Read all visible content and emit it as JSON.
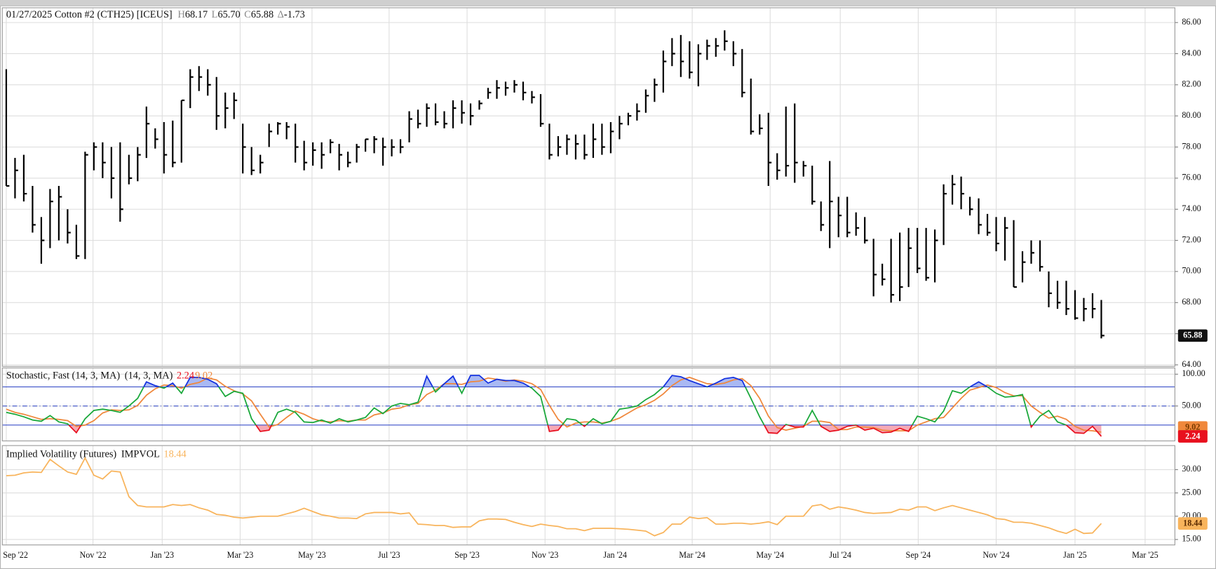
{
  "chart_data": [
    {
      "type": "ohlc",
      "title": "01/27/2025 Cotton #2 (CTH25) [ICEUS]",
      "stats": [
        {
          "prefix": "H",
          "value": 68.17
        },
        {
          "prefix": "L",
          "value": 65.7,
          "label": "65.70"
        },
        {
          "prefix": "C",
          "value": 65.88
        },
        {
          "prefix": "Δ",
          "value": -1.73
        }
      ],
      "color": "#000000",
      "tag_color": "#111111",
      "xlim": [
        -0.45,
        133.4
      ],
      "ylim": [
        63.9,
        86.95
      ],
      "yticks": [
        {
          "value": 64,
          "label": "64.00"
        },
        {
          "value": 66,
          "label": "66.00"
        },
        {
          "value": 68,
          "label": "68.00"
        },
        {
          "value": 70,
          "label": "70.00"
        },
        {
          "value": 72,
          "label": "72.00"
        },
        {
          "value": 74,
          "label": "74.00"
        },
        {
          "value": 76,
          "label": "76.00"
        },
        {
          "value": 78,
          "label": "78.00"
        },
        {
          "value": 80,
          "label": "80.00"
        },
        {
          "value": 82,
          "label": "82.00"
        },
        {
          "value": 84,
          "label": "84.00"
        },
        {
          "value": 86,
          "label": "86.00"
        }
      ],
      "grid": true,
      "high": [
        83,
        77.3,
        77.5,
        75.5,
        73.5,
        75.3,
        75.5,
        74,
        73,
        77.7,
        78.3,
        78.3,
        78,
        78.3,
        77.5,
        78,
        80.6,
        79.2,
        79.6,
        79.7,
        81,
        83,
        83.2,
        83,
        82.5,
        81.5,
        81.5,
        79.5,
        78,
        77.5,
        79.5,
        79.6,
        79.6,
        79.5,
        78.4,
        78.3,
        78.3,
        78.5,
        78.2,
        77.7,
        78.2,
        78.5,
        78.7,
        78.6,
        78.5,
        78.5,
        80.3,
        80.4,
        80.8,
        80.8,
        80.3,
        81,
        81,
        80.8,
        81,
        81.8,
        82.3,
        82.2,
        82.3,
        82.2,
        81.6,
        81.4,
        79.5,
        78.7,
        78.8,
        78.8,
        78.8,
        79.5,
        79.5,
        79.6,
        80,
        80.2,
        80.8,
        81.7,
        82.4,
        84.2,
        85,
        85.2,
        84.8,
        84.6,
        84.9,
        85,
        85.5,
        84.8,
        84.3,
        82.4,
        80.1,
        80.2,
        77.6,
        80.6,
        80.8,
        77.1,
        76.8,
        74.5,
        77.1,
        74.8,
        74.8,
        73.8,
        73.5,
        72.1,
        70.5,
        72.1,
        72.5,
        72.8,
        72.8,
        72.8,
        72.7,
        75.6,
        76.2,
        76.1,
        74.8,
        74.7,
        73.7,
        73.5,
        73.5,
        73.3,
        71.3,
        72,
        72,
        70,
        69.4,
        69.4,
        68.8,
        68.3,
        68.6,
        68.17
      ],
      "low": [
        75.5,
        74.7,
        74.5,
        72.5,
        70.5,
        71.5,
        72,
        71.8,
        70.8,
        70.8,
        76.5,
        76,
        74.7,
        73.2,
        75.6,
        75.8,
        77.3,
        77.9,
        76.3,
        76.7,
        77,
        80.5,
        81.6,
        81.3,
        79.1,
        79.2,
        79.8,
        76.3,
        76.2,
        76.3,
        78,
        78.8,
        78.5,
        77,
        76.5,
        76.8,
        76.6,
        77.6,
        76.5,
        76.7,
        77,
        77.7,
        77.6,
        76.8,
        77.4,
        77.6,
        78.3,
        79.2,
        79.3,
        79.4,
        79.2,
        79.2,
        79.5,
        79.4,
        80.4,
        81.1,
        81.1,
        81.3,
        81.5,
        81,
        80.8,
        79.3,
        77.2,
        77.4,
        77.5,
        77.2,
        77.2,
        77.3,
        77.5,
        77.6,
        78.5,
        79.4,
        79.7,
        80.2,
        80.9,
        81.5,
        83.2,
        82.5,
        82.4,
        81.9,
        83.6,
        83.8,
        84.2,
        83.2,
        81.2,
        78.8,
        78.8,
        75.5,
        75.9,
        76.1,
        75.7,
        76.1,
        74.3,
        72.6,
        71.5,
        72.2,
        72.2,
        72.3,
        71.8,
        68.4,
        69.1,
        68,
        68.1,
        69,
        69.9,
        69.4,
        69.3,
        71.7,
        74.3,
        74,
        73.6,
        72.4,
        72.3,
        71.3,
        70.7,
        69,
        69.3,
        70.5,
        70,
        67.7,
        67.6,
        67.2,
        66.9,
        66.8,
        67,
        65.7
      ],
      "close": [
        75.5,
        76.5,
        75,
        73,
        72,
        74.5,
        74.8,
        72.5,
        71,
        77.5,
        78,
        77,
        76,
        74,
        76,
        77.5,
        79.5,
        78.5,
        77.5,
        77,
        81,
        82.5,
        82.5,
        82,
        80,
        80.5,
        81,
        78,
        76.5,
        77,
        79,
        79.5,
        79.3,
        78,
        77,
        77.8,
        77.5,
        78.3,
        77.5,
        77,
        78,
        78.5,
        78.5,
        78,
        78,
        78,
        79.8,
        79.5,
        80.5,
        79.6,
        79.5,
        80.5,
        80.2,
        80,
        80.8,
        81.5,
        81.8,
        81.8,
        82,
        81.5,
        81.2,
        79.5,
        77.5,
        78,
        78.5,
        78.2,
        77.5,
        78.5,
        78,
        79,
        79.5,
        80,
        80.3,
        81.3,
        82,
        83.5,
        84,
        83.5,
        82.8,
        84,
        84.5,
        84.5,
        84.8,
        84,
        81.5,
        79,
        79.2,
        77,
        76.5,
        76.8,
        77,
        76.8,
        74.5,
        73,
        74.5,
        73.6,
        72.5,
        72.8,
        72,
        69.8,
        69.5,
        68.5,
        69,
        71.5,
        70.2,
        69.6,
        72,
        75,
        75.6,
        75,
        74,
        73,
        72.5,
        71.8,
        72.8,
        69,
        70.6,
        71.2,
        70.3,
        68.6,
        68,
        67.6,
        67,
        67.6,
        67.6,
        65.88
      ]
    },
    {
      "type": "stochastic",
      "title": "Stochastic, Fast (14, 3, MA)",
      "subtitle": "(14, 3, MA)",
      "xlim": [
        -0.45,
        133.4
      ],
      "ylim": [
        -4.9,
        109.8
      ],
      "yticks": [
        {
          "value": 50,
          "label": "50.00"
        },
        {
          "value": 100,
          "label": "100.00"
        }
      ],
      "upper": 80,
      "lower": 20,
      "mid": 50,
      "band_color": "#3a4fc8",
      "above_color": "#1230e0",
      "below_color": "#e8101e",
      "above_fill": "#a9b9f3",
      "below_fill": "#f5a9b6",
      "series": [
        {
          "color": "#19a83a",
          "values": [
            40,
            37,
            33,
            28,
            26,
            35,
            25,
            22,
            8,
            30,
            43,
            45,
            43,
            40,
            50,
            62,
            88,
            82,
            78,
            86,
            70,
            95,
            95,
            92,
            85,
            65,
            73,
            70,
            30,
            10,
            12,
            40,
            45,
            40,
            25,
            24,
            28,
            23,
            30,
            25,
            28,
            32,
            47,
            38,
            50,
            54,
            52,
            56,
            97,
            72,
            85,
            97,
            70,
            98,
            98,
            86,
            92,
            90,
            90,
            86,
            78,
            65,
            10,
            12,
            30,
            28,
            18,
            30,
            22,
            26,
            45,
            47,
            50,
            60,
            68,
            80,
            98,
            96,
            90,
            85,
            80,
            86,
            93,
            95,
            90,
            62,
            33,
            8,
            7,
            21,
            17,
            17,
            43,
            18,
            10,
            12,
            18,
            20,
            12,
            15,
            8,
            9,
            15,
            10,
            34,
            30,
            25,
            42,
            74,
            70,
            80,
            88,
            80,
            70,
            64,
            65,
            68,
            17,
            34,
            43,
            25,
            20,
            8,
            7,
            18,
            2.24
          ]
        },
        {
          "color": "#f0883c",
          "values": [
            45,
            40,
            37,
            33,
            29,
            30,
            29,
            27,
            18,
            20,
            27,
            39,
            44,
            43,
            44,
            51,
            67,
            77,
            83,
            82,
            78,
            84,
            87,
            94,
            91,
            81,
            74,
            69,
            58,
            37,
            17,
            21,
            32,
            42,
            37,
            30,
            26,
            25,
            27,
            26,
            28,
            28,
            36,
            39,
            45,
            47,
            52,
            54,
            68,
            75,
            85,
            85,
            84,
            88,
            89,
            94,
            92,
            89,
            91,
            89,
            85,
            76,
            51,
            29,
            17,
            23,
            25,
            25,
            23,
            26,
            31,
            39,
            47,
            52,
            59,
            69,
            82,
            91,
            95,
            90,
            85,
            84,
            86,
            91,
            93,
            82,
            62,
            34,
            16,
            12,
            15,
            18,
            26,
            26,
            24,
            13,
            13,
            17,
            17,
            16,
            12,
            11,
            11,
            11,
            20,
            25,
            30,
            32,
            47,
            62,
            75,
            79,
            83,
            79,
            71,
            66,
            66,
            50,
            40,
            31,
            34,
            29,
            18,
            12,
            11,
            9.02
          ]
        }
      ]
    },
    {
      "type": "line",
      "title": "Implied Volatility (Futures)",
      "subtitle": "IMPVOL",
      "xlim": [
        -0.45,
        133.4
      ],
      "ylim": [
        13.83,
        35.17
      ],
      "yticks": [
        {
          "value": 15,
          "label": "15.00"
        },
        {
          "value": 20,
          "label": "20.00"
        },
        {
          "value": 25,
          "label": "25.00"
        },
        {
          "value": 30,
          "label": "30.00"
        }
      ],
      "xticks": [
        {
          "value": 0,
          "label": "Sep '22"
        },
        {
          "value": 9.9,
          "label": "Nov '22"
        },
        {
          "value": 17.8,
          "label": "Jan '23"
        },
        {
          "value": 26.7,
          "label": "Mar '23"
        },
        {
          "value": 34.9,
          "label": "May '23"
        },
        {
          "value": 43.7,
          "label": "Jul '23"
        },
        {
          "value": 52.6,
          "label": "Sep '23"
        },
        {
          "value": 61.5,
          "label": "Nov '23"
        },
        {
          "value": 69.5,
          "label": "Jan '24"
        },
        {
          "value": 78.3,
          "label": "Mar '24"
        },
        {
          "value": 87.2,
          "label": "May '24"
        },
        {
          "value": 95.2,
          "label": "Jul '24"
        },
        {
          "value": 104.1,
          "label": "Sep '24"
        },
        {
          "value": 113,
          "label": "Nov '24"
        },
        {
          "value": 122,
          "label": "Jan '25"
        },
        {
          "value": 130,
          "label": "Mar '25"
        }
      ],
      "series": [
        {
          "color": "#f8b45c",
          "values": [
            28.7,
            28.8,
            29.3,
            29.5,
            29.4,
            32.2,
            30.8,
            29.5,
            29,
            32.5,
            28.8,
            28,
            29.7,
            29.5,
            24.2,
            22.3,
            22,
            22,
            22,
            22.5,
            22.3,
            22.5,
            21.8,
            21.3,
            20.4,
            20.2,
            19.8,
            19.6,
            19.8,
            20,
            20,
            20,
            20.5,
            21,
            21.7,
            21,
            20.3,
            20,
            19.6,
            19.6,
            19.5,
            20.5,
            20.8,
            20.8,
            20.8,
            20.5,
            20.7,
            18.3,
            18.2,
            18,
            18,
            17.6,
            17.7,
            17.7,
            19,
            19.4,
            19.4,
            19.3,
            18.7,
            18.2,
            17.8,
            18.3,
            18,
            17.8,
            17.3,
            17.3,
            16.9,
            17.4,
            17.4,
            17.4,
            17.3,
            17.2,
            17,
            16.8,
            15.8,
            16.5,
            18.3,
            18.3,
            19.8,
            19.5,
            19.7,
            18.3,
            18.3,
            18.5,
            18.5,
            18.3,
            18.5,
            18.8,
            18.2,
            20,
            20,
            20,
            22.2,
            22.5,
            21.5,
            22,
            21.7,
            21.3,
            20.8,
            20.6,
            20.7,
            20.8,
            21.5,
            21.3,
            22,
            22,
            21.2,
            21.8,
            22.3,
            21.8,
            21.3,
            20.8,
            20.3,
            19.5,
            19.3,
            18.7,
            18.7,
            18.5,
            18,
            17.5,
            16.8,
            16.3,
            17.2,
            16.3,
            16.4,
            18.44
          ]
        }
      ]
    }
  ]
}
